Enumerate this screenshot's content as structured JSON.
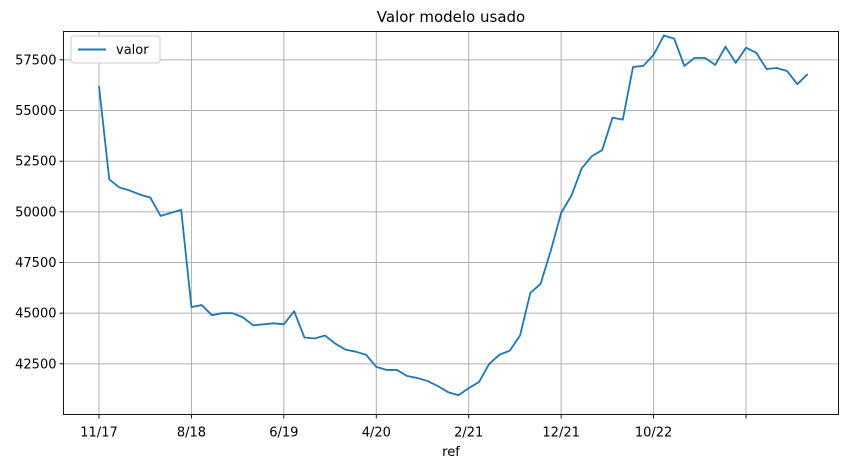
{
  "chart_data": {
    "type": "line",
    "title": "Valor modelo usado",
    "xlabel": "ref",
    "ylabel": "",
    "grid": true,
    "legend": "top-left",
    "x_tick_labels": [
      "11/17",
      "8/18",
      "6/19",
      "4/20",
      "2/21",
      "12/21",
      "10/22",
      ""
    ],
    "y_ticks": [
      42500,
      45000,
      47500,
      50000,
      52500,
      55000,
      57500
    ],
    "ylim": [
      40000,
      58900
    ],
    "series": [
      {
        "name": "valor",
        "color": "#1f77b4",
        "x": [
          "11/17",
          "12/17",
          "1/18",
          "2/18",
          "3/18",
          "4/18",
          "5/18",
          "6/18",
          "7/18",
          "8/18",
          "9/18",
          "10/18",
          "11/18",
          "12/18",
          "1/19",
          "2/19",
          "3/19",
          "4/19",
          "5/19",
          "6/19",
          "7/19",
          "8/19",
          "9/19",
          "10/19",
          "11/19",
          "12/19",
          "1/20",
          "2/20",
          "3/20",
          "4/20",
          "5/20",
          "6/20",
          "7/20",
          "8/20",
          "9/20",
          "10/20",
          "11/20",
          "12/20",
          "1/21",
          "2/21",
          "3/21",
          "4/21",
          "5/21",
          "6/21",
          "7/21",
          "8/21",
          "9/21",
          "10/21",
          "11/21",
          "12/21",
          "1/22",
          "2/22",
          "3/22",
          "4/22",
          "5/22",
          "6/22",
          "7/22",
          "8/22",
          "9/22",
          "10/22",
          "11/22",
          "12/22",
          "1/23",
          "2/23",
          "3/23",
          "4/23",
          "5/23",
          "6/23",
          "7/23",
          "8/23"
        ],
        "values": [
          56200,
          51600,
          51200,
          51050,
          50850,
          50700,
          49800,
          49950,
          50100,
          45300,
          45400,
          44900,
          45000,
          45000,
          44800,
          44400,
          44450,
          44500,
          44450,
          45100,
          43800,
          43750,
          43900,
          43500,
          43200,
          43100,
          42950,
          42350,
          42200,
          42200,
          41900,
          41800,
          41650,
          41400,
          41100,
          40950,
          41300,
          41600,
          42500,
          42950,
          43150,
          43900,
          46000,
          46450,
          48100,
          49950,
          50800,
          52150,
          52750,
          53050,
          54650,
          54550,
          57150,
          57200,
          57750,
          58700,
          58550,
          57200,
          57600,
          57600,
          57250,
          58150,
          57350,
          58100,
          57850,
          57050,
          57100,
          56950,
          56300,
          56800
        ]
      }
    ]
  }
}
